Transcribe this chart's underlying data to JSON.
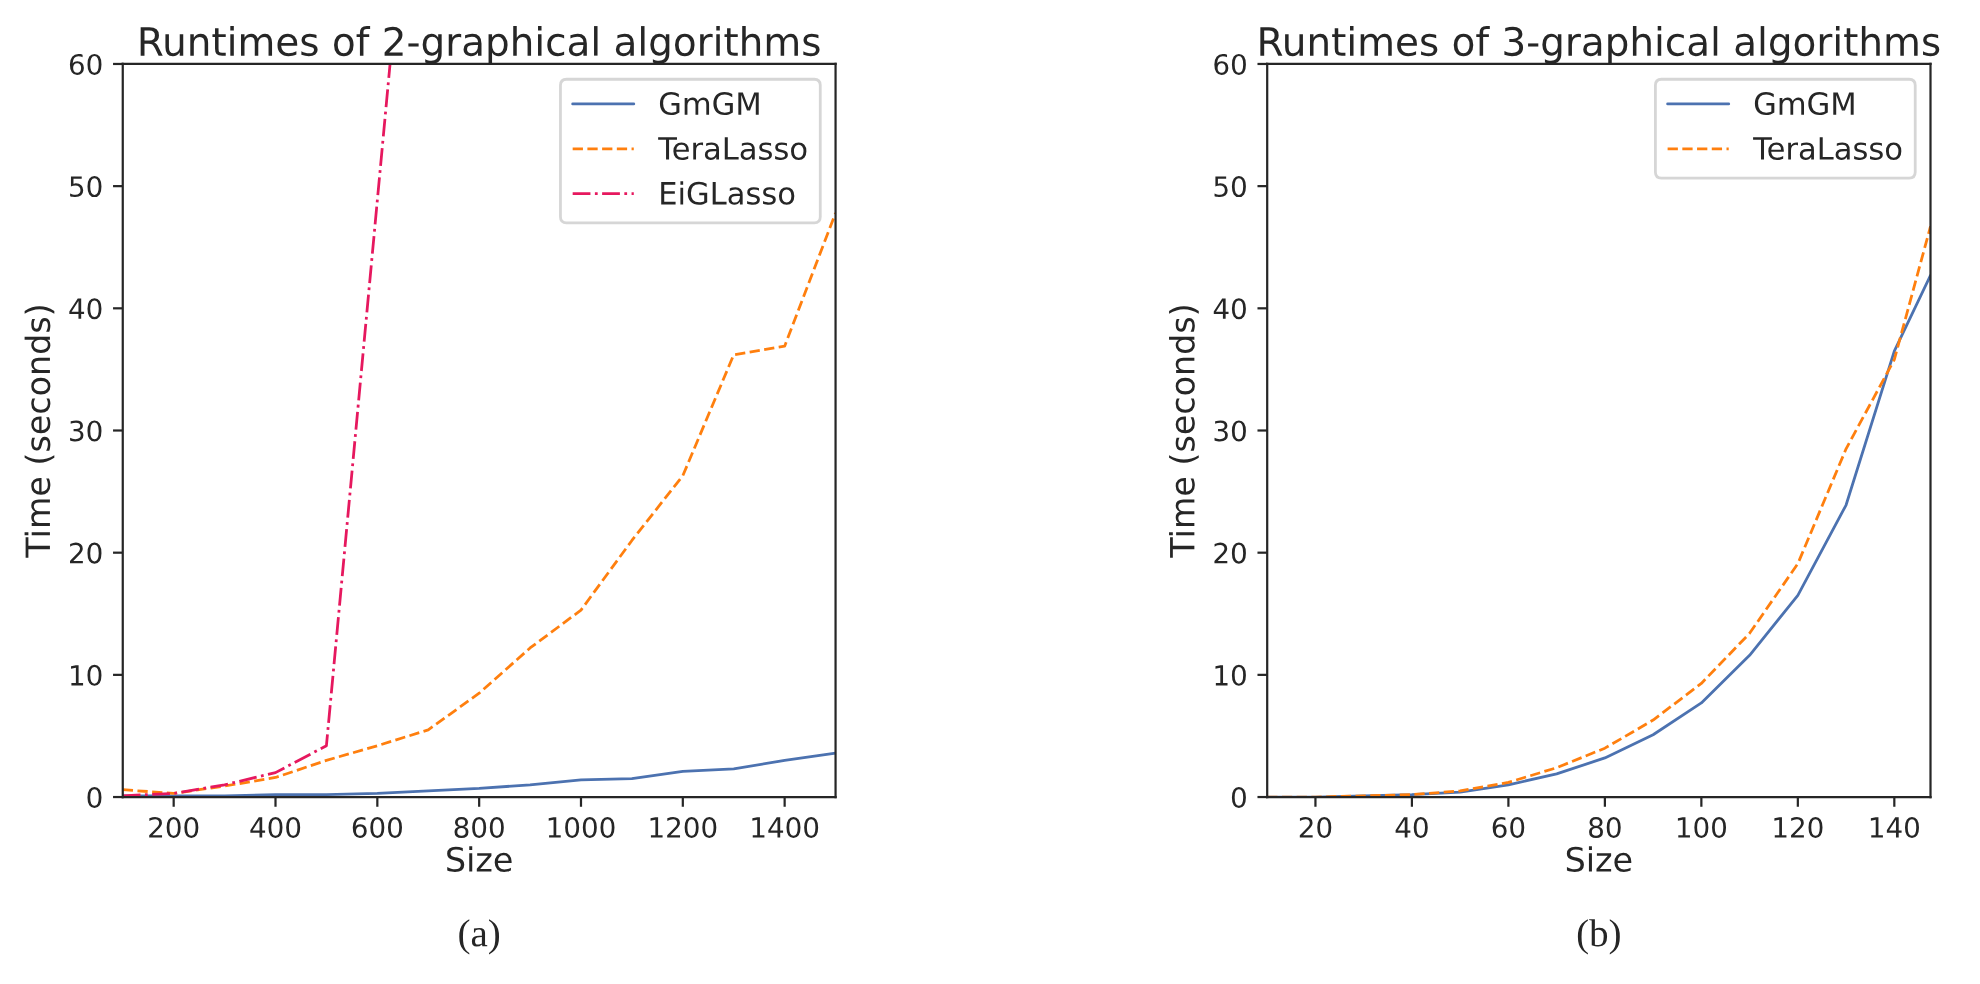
{
  "chart_data": [
    {
      "type": "line",
      "title": "Runtimes of 2-graphical algorithms",
      "xlabel": "Size",
      "ylabel": "Time (seconds)",
      "xlim": [
        100,
        1500
      ],
      "xticks": [
        200,
        400,
        600,
        800,
        1000,
        1200,
        1400
      ],
      "ylim": [
        0,
        60
      ],
      "yticks": [
        0,
        10,
        20,
        30,
        40,
        50,
        60
      ],
      "grid": false,
      "legend": "top right",
      "annotations": [
        "(a)"
      ],
      "x": [
        100,
        200,
        300,
        400,
        500,
        600,
        700,
        800,
        900,
        1000,
        1100,
        1200,
        1300,
        1400,
        1500
      ],
      "series": [
        {
          "name": "GmGM",
          "color": "#4c72b0",
          "line_style": "solid",
          "values": [
            0.1,
            0.1,
            0.1,
            0.2,
            0.2,
            0.3,
            0.5,
            0.7,
            1.0,
            1.4,
            1.5,
            2.1,
            2.3,
            3.0,
            3.6
          ]
        },
        {
          "name": "TeraLasso",
          "color": "#ff7f0e",
          "line_style": "dashed",
          "values": [
            0.6,
            0.3,
            0.9,
            1.6,
            3.0,
            4.2,
            5.5,
            8.5,
            12.2,
            15.3,
            21,
            26.3,
            36.2,
            36.9,
            47.8
          ]
        },
        {
          "name": "EiGLasso",
          "color": "#e6185e",
          "line_style": "dashdot",
          "x": [
            100,
            200,
            300,
            400,
            500,
            625
          ],
          "values": [
            0.1,
            0.3,
            1.0,
            2.0,
            4.2,
            60
          ]
        }
      ]
    },
    {
      "type": "line",
      "title": "Runtimes of 3-graphical algorithms",
      "xlabel": "Size",
      "ylabel": "Time (seconds)",
      "xlim": [
        10,
        147.5
      ],
      "xticks": [
        20,
        40,
        60,
        80,
        100,
        120,
        140
      ],
      "ylim": [
        0,
        60
      ],
      "yticks": [
        0,
        10,
        20,
        30,
        40,
        50,
        60
      ],
      "grid": false,
      "legend": "top right",
      "annotations": [
        "(b)"
      ],
      "x": [
        10,
        20,
        30,
        40,
        50,
        60,
        70,
        80,
        90,
        100,
        110,
        120,
        130,
        140,
        147.5
      ],
      "series": [
        {
          "name": "GmGM",
          "color": "#4c72b0",
          "line_style": "solid",
          "values": [
            0,
            0,
            0.1,
            0.2,
            0.4,
            1.0,
            1.9,
            3.2,
            5.1,
            7.7,
            11.6,
            16.5,
            23.9,
            36.5,
            42.7
          ]
        },
        {
          "name": "TeraLasso",
          "color": "#ff7f0e",
          "line_style": "dashed",
          "values": [
            0,
            0,
            0.1,
            0.2,
            0.5,
            1.2,
            2.4,
            4.0,
            6.3,
            9.3,
            13.4,
            19.1,
            28.5,
            35.8,
            46.7
          ]
        }
      ]
    }
  ]
}
